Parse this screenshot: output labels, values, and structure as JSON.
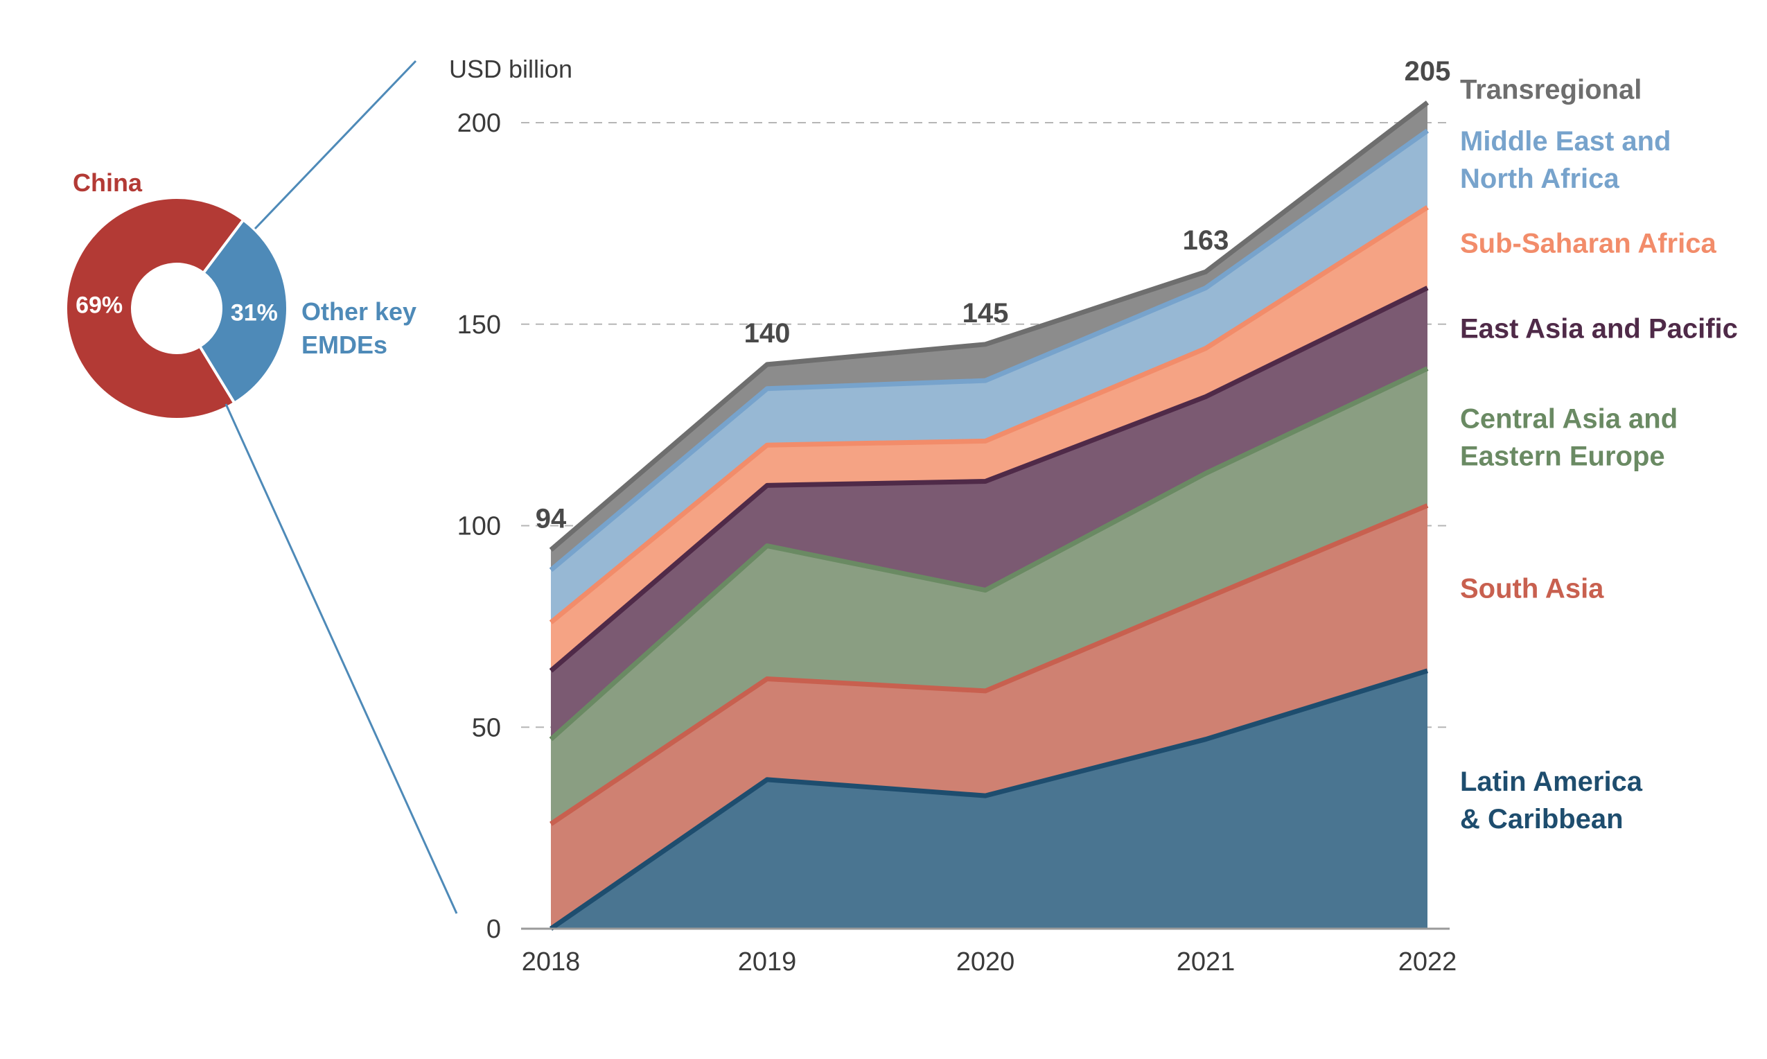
{
  "chart_data": [
    {
      "type": "pie",
      "variant": "donut",
      "slices": [
        {
          "name": "China",
          "value": 69,
          "label": "69%",
          "color": "#b33a35"
        },
        {
          "name": "Other key EMDEs",
          "name_lines": [
            "Other key",
            "EMDEs"
          ],
          "value": 31,
          "label": "31%",
          "color": "#4e8ab8"
        }
      ]
    },
    {
      "type": "area",
      "stacked": true,
      "unit_label": "USD billion",
      "categories": [
        "2018",
        "2019",
        "2020",
        "2021",
        "2022"
      ],
      "ylim": [
        0,
        205
      ],
      "yticks": [
        0,
        50,
        100,
        150,
        200
      ],
      "grid": "dashed horizontal",
      "legend_position": "right, aligned with series",
      "totals": [
        94,
        140,
        145,
        163,
        205
      ],
      "series": [
        {
          "name": "Latin America & Caribbean",
          "label_lines": [
            "Latin America",
            "& Caribbean"
          ],
          "values": [
            0,
            37,
            33,
            47,
            64
          ],
          "fill": "#4a7591",
          "line": "#1e4d6e",
          "text_color": "#1e4d6e"
        },
        {
          "name": "South Asia",
          "label_lines": [
            "South Asia"
          ],
          "values": [
            26,
            25,
            26,
            35,
            41
          ],
          "fill": "#cf8172",
          "line": "#c8604f",
          "text_color": "#c8604f"
        },
        {
          "name": "Central Asia and Eastern Europe",
          "label_lines": [
            "Central Asia and",
            "Eastern Europe"
          ],
          "values": [
            21,
            33,
            25,
            31,
            34
          ],
          "fill": "#8a9e82",
          "line": "#6a8a63",
          "text_color": "#6a8a63"
        },
        {
          "name": "East Asia and Pacific",
          "label_lines": [
            "East Asia and Pacific"
          ],
          "values": [
            17,
            15,
            27,
            19,
            20
          ],
          "fill": "#7b5a72",
          "line": "#4f2a48",
          "text_color": "#4f2a48"
        },
        {
          "name": "Sub-Saharan Africa",
          "label_lines": [
            "Sub-Saharan Africa"
          ],
          "values": [
            12,
            10,
            10,
            12,
            20
          ],
          "fill": "#f5a384",
          "line": "#f28c6a",
          "text_color": "#f28c6a"
        },
        {
          "name": "Middle East and North Africa",
          "label_lines": [
            "Middle East and",
            "North Africa"
          ],
          "values": [
            13,
            14,
            15,
            15,
            19
          ],
          "fill": "#97b8d4",
          "line": "#77a3cc",
          "text_color": "#77a3cc"
        },
        {
          "name": "Transregional",
          "label_lines": [
            "Transregional"
          ],
          "values": [
            5,
            6,
            9,
            4,
            7
          ],
          "fill": "#8c8c8c",
          "line": "#6e6e6e",
          "text_color": "#6e6e6e"
        }
      ]
    }
  ]
}
